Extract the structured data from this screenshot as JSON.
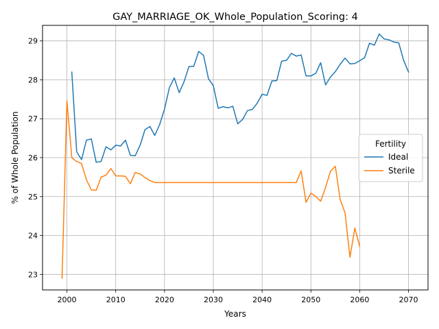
{
  "chart_data": {
    "type": "line",
    "title": "GAY_MARRIAGE_OK_Whole_Population_Scoring: 4",
    "xlabel": "Years",
    "ylabel": "% of Whole Population",
    "xlim": [
      1995,
      2074
    ],
    "ylim": [
      22.6,
      29.4
    ],
    "xticks": [
      2000,
      2010,
      2020,
      2030,
      2040,
      2050,
      2060,
      2070
    ],
    "yticks": [
      23,
      24,
      25,
      26,
      27,
      28,
      29
    ],
    "grid": true,
    "legend": {
      "title": "Fertility",
      "placement": "center-right"
    },
    "series": [
      {
        "name": "Ideal",
        "color": "#1f77b4",
        "x": [
          2001,
          2002,
          2003,
          2004,
          2005,
          2006,
          2007,
          2008,
          2009,
          2010,
          2011,
          2012,
          2013,
          2014,
          2015,
          2016,
          2017,
          2018,
          2019,
          2020,
          2021,
          2022,
          2023,
          2024,
          2025,
          2026,
          2027,
          2028,
          2029,
          2030,
          2031,
          2032,
          2033,
          2034,
          2035,
          2036,
          2037,
          2038,
          2039,
          2040,
          2041,
          2042,
          2043,
          2044,
          2045,
          2046,
          2047,
          2048,
          2049,
          2050,
          2051,
          2052,
          2053,
          2054,
          2055,
          2056,
          2057,
          2058,
          2059,
          2060,
          2061,
          2062,
          2063,
          2064,
          2065,
          2066,
          2067,
          2068,
          2069,
          2070
        ],
        "values": [
          28.2,
          26.15,
          25.95,
          26.45,
          26.48,
          25.88,
          25.9,
          26.28,
          26.2,
          26.32,
          26.3,
          26.45,
          26.06,
          26.05,
          26.32,
          26.72,
          26.8,
          26.57,
          26.85,
          27.25,
          27.8,
          28.05,
          27.67,
          27.95,
          28.34,
          28.35,
          28.73,
          28.63,
          28.03,
          27.85,
          27.27,
          27.31,
          27.28,
          27.32,
          26.87,
          26.98,
          27.21,
          27.24,
          27.4,
          27.63,
          27.6,
          27.97,
          27.98,
          28.48,
          28.5,
          28.68,
          28.61,
          28.64,
          28.1,
          28.1,
          28.17,
          28.44,
          27.87,
          28.07,
          28.21,
          28.4,
          28.56,
          28.41,
          28.42,
          28.49,
          28.57,
          28.94,
          28.89,
          29.18,
          29.05,
          29.03,
          28.97,
          28.95,
          28.5,
          28.2
        ]
      },
      {
        "name": "Sterile",
        "color": "#ff7f0e",
        "x": [
          1999,
          2000,
          2001,
          2002,
          2003,
          2004,
          2005,
          2006,
          2007,
          2008,
          2009,
          2010,
          2011,
          2012,
          2013,
          2014,
          2015,
          2016,
          2017,
          2018,
          2019,
          2020,
          2025,
          2030,
          2035,
          2040,
          2045,
          2047,
          2048,
          2049,
          2050,
          2051,
          2052,
          2053,
          2054,
          2055,
          2056,
          2057,
          2058,
          2059,
          2060
        ],
        "values": [
          22.9,
          27.46,
          26.0,
          25.9,
          25.85,
          25.43,
          25.17,
          25.16,
          25.5,
          25.55,
          25.72,
          25.53,
          25.53,
          25.52,
          25.33,
          25.62,
          25.58,
          25.49,
          25.41,
          25.36,
          25.36,
          25.36,
          25.36,
          25.36,
          25.36,
          25.36,
          25.36,
          25.36,
          25.66,
          24.85,
          25.09,
          25.0,
          24.88,
          25.23,
          25.65,
          25.78,
          24.92,
          24.58,
          23.44,
          24.19,
          23.72
        ]
      }
    ]
  }
}
